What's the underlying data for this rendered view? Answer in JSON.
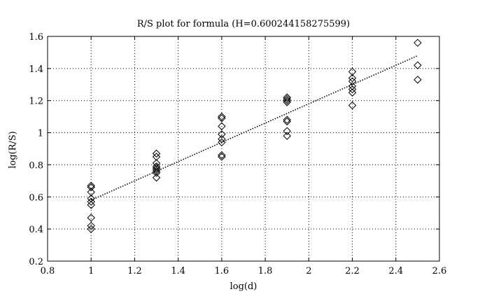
{
  "chart_data": {
    "type": "scatter",
    "title": "R/S plot for formula (H=0.600244158275599)",
    "xlabel": "log(d)",
    "ylabel": "log(R/S)",
    "xlim": [
      0.8,
      2.6
    ],
    "ylim": [
      0.2,
      1.6
    ],
    "x_ticks": [
      "0.8",
      "1",
      "1.2",
      "1.4",
      "1.6",
      "1.8",
      "2",
      "2.2",
      "2.4",
      "2.6"
    ],
    "y_ticks": [
      "0.2",
      "0.4",
      "0.6",
      "0.8",
      "1",
      "1.2",
      "1.4",
      "1.6"
    ],
    "grid": true,
    "marker": "diamond",
    "points": [
      {
        "x": 1.0,
        "y": 0.67
      },
      {
        "x": 1.0,
        "y": 0.66
      },
      {
        "x": 1.0,
        "y": 0.63
      },
      {
        "x": 1.0,
        "y": 0.59
      },
      {
        "x": 1.0,
        "y": 0.57
      },
      {
        "x": 1.0,
        "y": 0.55
      },
      {
        "x": 1.0,
        "y": 0.47
      },
      {
        "x": 1.0,
        "y": 0.42
      },
      {
        "x": 1.0,
        "y": 0.4
      },
      {
        "x": 1.3,
        "y": 0.87
      },
      {
        "x": 1.3,
        "y": 0.85
      },
      {
        "x": 1.3,
        "y": 0.81
      },
      {
        "x": 1.3,
        "y": 0.79
      },
      {
        "x": 1.3,
        "y": 0.78
      },
      {
        "x": 1.3,
        "y": 0.77
      },
      {
        "x": 1.3,
        "y": 0.76
      },
      {
        "x": 1.3,
        "y": 0.75
      },
      {
        "x": 1.3,
        "y": 0.72
      },
      {
        "x": 1.6,
        "y": 1.1
      },
      {
        "x": 1.6,
        "y": 1.09
      },
      {
        "x": 1.6,
        "y": 1.04
      },
      {
        "x": 1.6,
        "y": 0.99
      },
      {
        "x": 1.6,
        "y": 0.96
      },
      {
        "x": 1.6,
        "y": 0.94
      },
      {
        "x": 1.6,
        "y": 0.86
      },
      {
        "x": 1.6,
        "y": 0.85
      },
      {
        "x": 1.9,
        "y": 1.22
      },
      {
        "x": 1.9,
        "y": 1.21
      },
      {
        "x": 1.9,
        "y": 1.2
      },
      {
        "x": 1.9,
        "y": 1.19
      },
      {
        "x": 1.9,
        "y": 1.08
      },
      {
        "x": 1.9,
        "y": 1.07
      },
      {
        "x": 1.9,
        "y": 1.01
      },
      {
        "x": 1.9,
        "y": 0.98
      },
      {
        "x": 2.2,
        "y": 1.38
      },
      {
        "x": 2.2,
        "y": 1.34
      },
      {
        "x": 2.2,
        "y": 1.32
      },
      {
        "x": 2.2,
        "y": 1.29
      },
      {
        "x": 2.2,
        "y": 1.27
      },
      {
        "x": 2.2,
        "y": 1.25
      },
      {
        "x": 2.2,
        "y": 1.17
      },
      {
        "x": 2.5,
        "y": 1.56
      },
      {
        "x": 2.5,
        "y": 1.42
      },
      {
        "x": 2.5,
        "y": 1.33
      }
    ],
    "fit_line": {
      "x": [
        1.0,
        2.5
      ],
      "y": [
        0.58,
        1.48
      ]
    }
  }
}
